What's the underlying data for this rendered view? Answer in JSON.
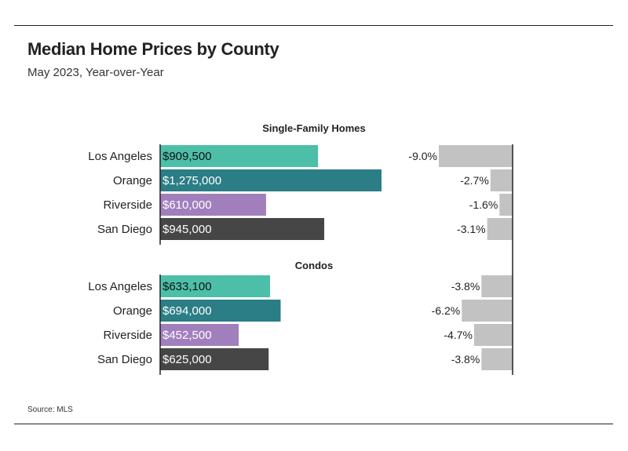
{
  "header": {
    "title": "Median Home Prices by County",
    "subtitle": "May 2023, Year-over-Year"
  },
  "footer": {
    "source": "Source: MLS"
  },
  "colors": {
    "Los Angeles": "#4dbfa8",
    "Orange": "#2b7d86",
    "Riverside": "#a17fbd",
    "San Diego": "#464646",
    "change_bar": "#c2c2c2",
    "axis": "#222222"
  },
  "chart_data": [
    {
      "type": "bar",
      "orientation": "horizontal",
      "title": "Single-Family Homes",
      "categories": [
        "Los Angeles",
        "Orange",
        "Riverside",
        "San Diego"
      ],
      "values": [
        909500,
        1275000,
        610000,
        945000
      ],
      "value_labels": [
        "$909,500",
        "$1,275,000",
        "$610,000",
        "$945,000"
      ],
      "change_pct": [
        -9.0,
        -2.7,
        -1.6,
        -3.1
      ],
      "change_labels": [
        "-9.0%",
        "-2.7%",
        "-1.6%",
        "-3.1%"
      ]
    },
    {
      "type": "bar",
      "orientation": "horizontal",
      "title": "Condos",
      "categories": [
        "Los Angeles",
        "Orange",
        "Riverside",
        "San Diego"
      ],
      "values": [
        633100,
        694000,
        452500,
        625000
      ],
      "value_labels": [
        "$633,100",
        "$694,000",
        "$452,500",
        "$625,000"
      ],
      "change_pct": [
        -3.8,
        -6.2,
        -4.7,
        -3.8
      ],
      "change_labels": [
        "-3.8%",
        "-6.2%",
        "-4.7%",
        "-3.8%"
      ]
    }
  ]
}
